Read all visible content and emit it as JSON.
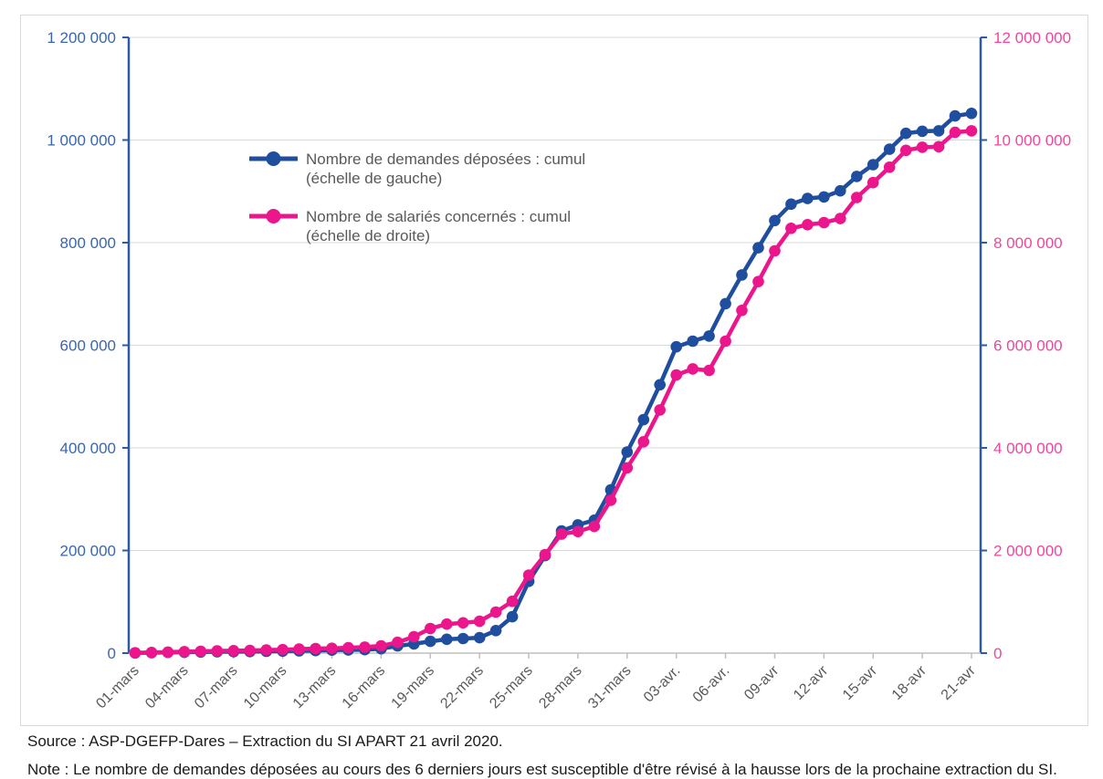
{
  "colors": {
    "series_demandes": "#1f4e9f",
    "series_salaries": "#ec168c",
    "left_axis_labels": "#3a66ae",
    "right_axis_labels": "#f0469c",
    "axis_line_blue": "#2d5aa6",
    "axis_line_gray": "#bfbfbf",
    "gridline": "#d9d9d9",
    "legend_text": "#595959",
    "x_tick_labels": "#595959",
    "panel_border": "#d9d9d9"
  },
  "legend": {
    "entries": [
      {
        "series": "demandes",
        "color": "#1f4e9f",
        "line1": "Nombre de demandes déposées : cumul",
        "line2": "(échelle de gauche)"
      },
      {
        "series": "salaries",
        "color": "#ec168c",
        "line1": "Nombre de salariés concernés : cumul",
        "line2": "(échelle de droite)"
      }
    ]
  },
  "footer": {
    "source": "Source : ASP-DGEFP-Dares – Extraction du SI APART 21 avril 2020.",
    "note_partially_visible": "Note : Le nombre de demandes déposées au cours des 6 derniers jours est susceptible d'être révisé à la hausse lors de la prochaine extraction du SI."
  },
  "chart_data": {
    "type": "line",
    "title": "",
    "grid": true,
    "legend_position": "top-left-inside",
    "x": [
      "01-mars",
      "02-mars",
      "03-mars",
      "04-mars",
      "05-mars",
      "06-mars",
      "07-mars",
      "08-mars",
      "09-mars",
      "10-mars",
      "11-mars",
      "12-mars",
      "13-mars",
      "14-mars",
      "15-mars",
      "16-mars",
      "17-mars",
      "18-mars",
      "19-mars",
      "20-mars",
      "21-mars",
      "22-mars",
      "23-mars",
      "24-mars",
      "25-mars",
      "26-mars",
      "27-mars",
      "28-mars",
      "29-mars",
      "30-mars",
      "31-mars",
      "01-avr",
      "02-avr",
      "03-avr",
      "04-avr",
      "05-avr",
      "06-avr",
      "07-avr",
      "08-avr",
      "09-avr",
      "10-avr",
      "11-avr",
      "12-avr",
      "13-avr",
      "14-avr",
      "15-avr",
      "16-avr",
      "17-avr",
      "18-avr",
      "19-avr",
      "20-avr",
      "21-avr"
    ],
    "x_tick_every": 3,
    "x_tick_labels": [
      "01-mars",
      "04-mars",
      "07-mars",
      "10-mars",
      "13-mars",
      "16-mars",
      "19-mars",
      "22-mars",
      "25-mars",
      "28-mars",
      "31-mars",
      "03-avr.",
      "06-avr.",
      "09-avr",
      "12-avr",
      "15-avr",
      "18-avr",
      "21-avr"
    ],
    "left_axis": {
      "min": 0,
      "max": 1200000,
      "step": 200000,
      "tick_labels": [
        "0",
        "200 000",
        "400 000",
        "600 000",
        "800 000",
        "1 000 000",
        "1 200 000"
      ]
    },
    "right_axis": {
      "min": 0,
      "max": 12000000,
      "step": 2000000,
      "tick_labels": [
        "0",
        "2 000 000",
        "4 000 000",
        "6 000 000",
        "8 000 000",
        "10 000 000",
        "12 000 000"
      ]
    },
    "series": [
      {
        "name": "Nombre de demandes déposées : cumul (échelle de gauche)",
        "axis": "left",
        "color": "#1f4e9f",
        "values": [
          400,
          900,
          1400,
          1800,
          2200,
          2600,
          2900,
          3100,
          3500,
          4000,
          4500,
          5000,
          5800,
          6300,
          6800,
          8500,
          14000,
          18000,
          23000,
          27000,
          28500,
          30000,
          44000,
          71000,
          140000,
          190000,
          238000,
          250000,
          259000,
          318000,
          392000,
          455000,
          523000,
          597000,
          608000,
          618000,
          681000,
          737000,
          790000,
          843000,
          875000,
          886000,
          889000,
          901000,
          929000,
          952000,
          982000,
          1013000,
          1017000,
          1018000,
          1047000,
          1052000
        ]
      },
      {
        "name": "Nombre de salariés concernés : cumul (échelle de droite)",
        "axis": "right",
        "color": "#ec168c",
        "values": [
          5000,
          12000,
          20000,
          28000,
          35000,
          42000,
          48000,
          52000,
          60000,
          68000,
          78000,
          88000,
          95000,
          105000,
          118000,
          140000,
          210000,
          320000,
          480000,
          565000,
          590000,
          620000,
          800000,
          1010000,
          1520000,
          1920000,
          2320000,
          2370000,
          2470000,
          2980000,
          3610000,
          4120000,
          4740000,
          5420000,
          5540000,
          5510000,
          6080000,
          6680000,
          7240000,
          7840000,
          8280000,
          8350000,
          8390000,
          8470000,
          8880000,
          9170000,
          9470000,
          9800000,
          9860000,
          9870000,
          10150000,
          10180000
        ]
      }
    ]
  }
}
